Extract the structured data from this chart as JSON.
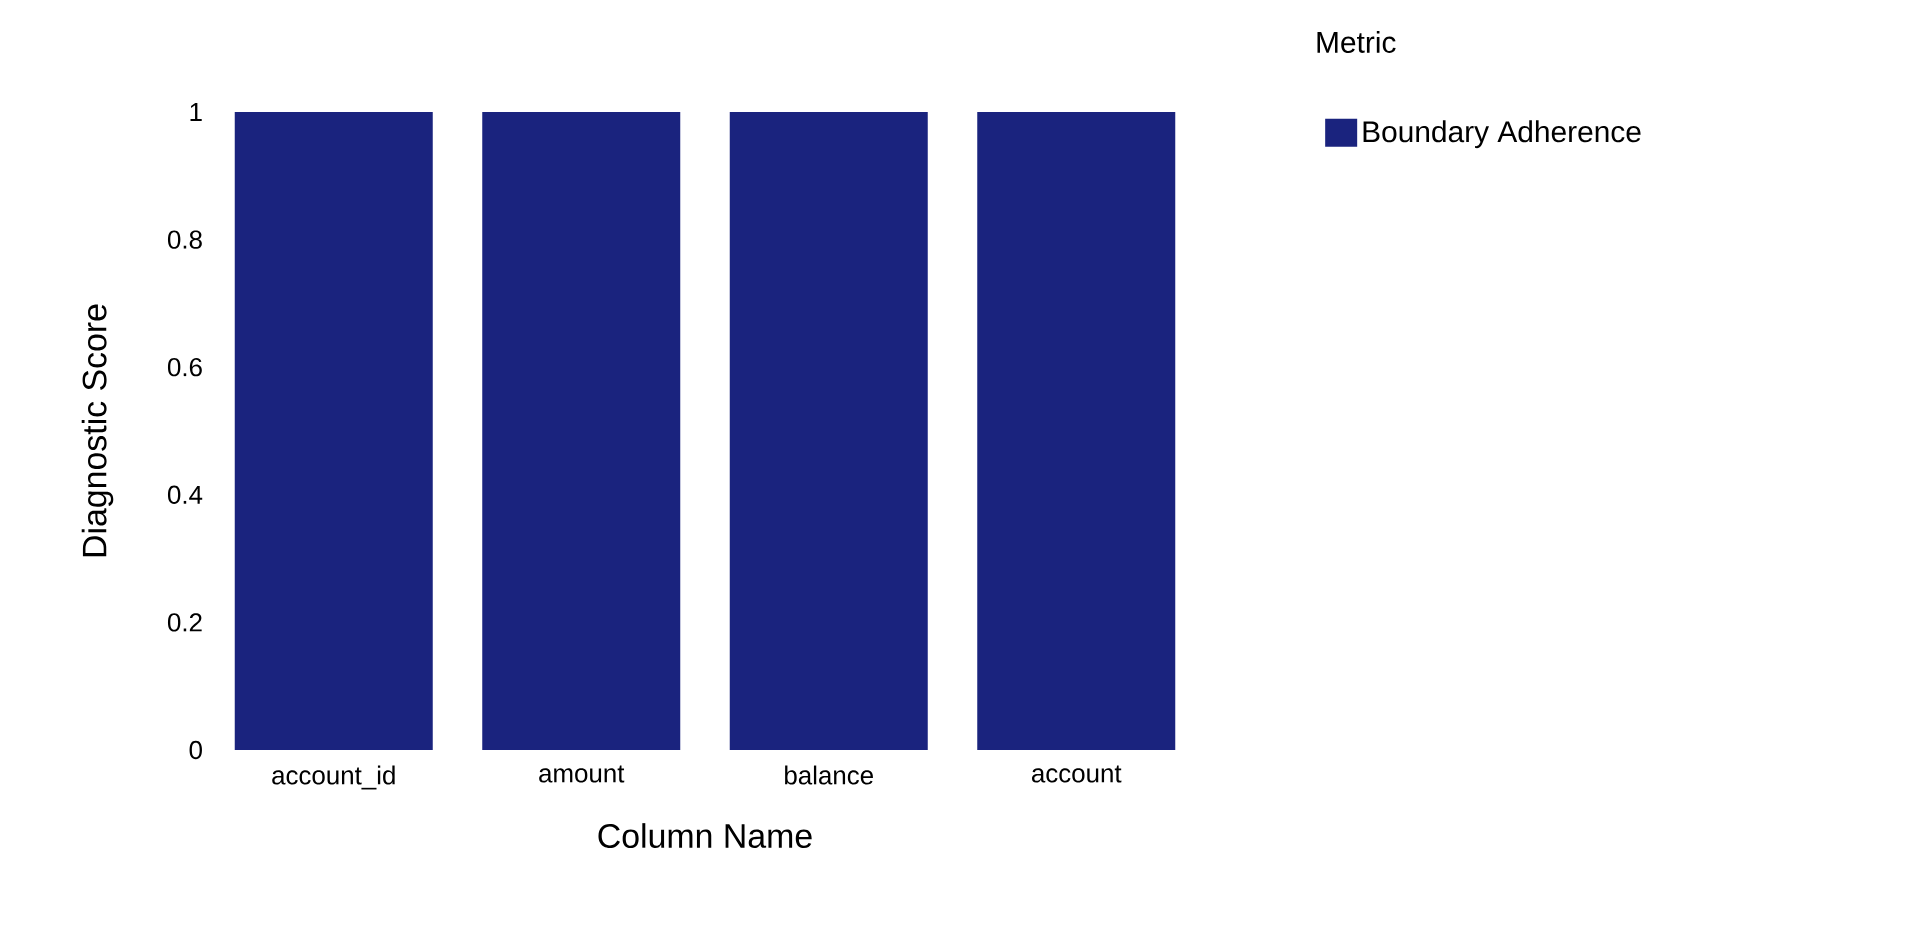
{
  "chart_data": {
    "type": "bar",
    "xlabel": "Column Name",
    "ylabel": "Diagnostic Score",
    "legend_title": "Metric",
    "categories": [
      "account_id",
      "amount",
      "balance",
      "account"
    ],
    "series": [
      {
        "name": "Boundary Adherence",
        "color": "#1a237e",
        "values": [
          1,
          1,
          1,
          1
        ]
      }
    ],
    "ylim": [
      0,
      1
    ],
    "yticks": [
      0,
      0.2,
      0.4,
      0.6,
      0.8,
      1
    ],
    "grid": false,
    "legend": "top right"
  }
}
